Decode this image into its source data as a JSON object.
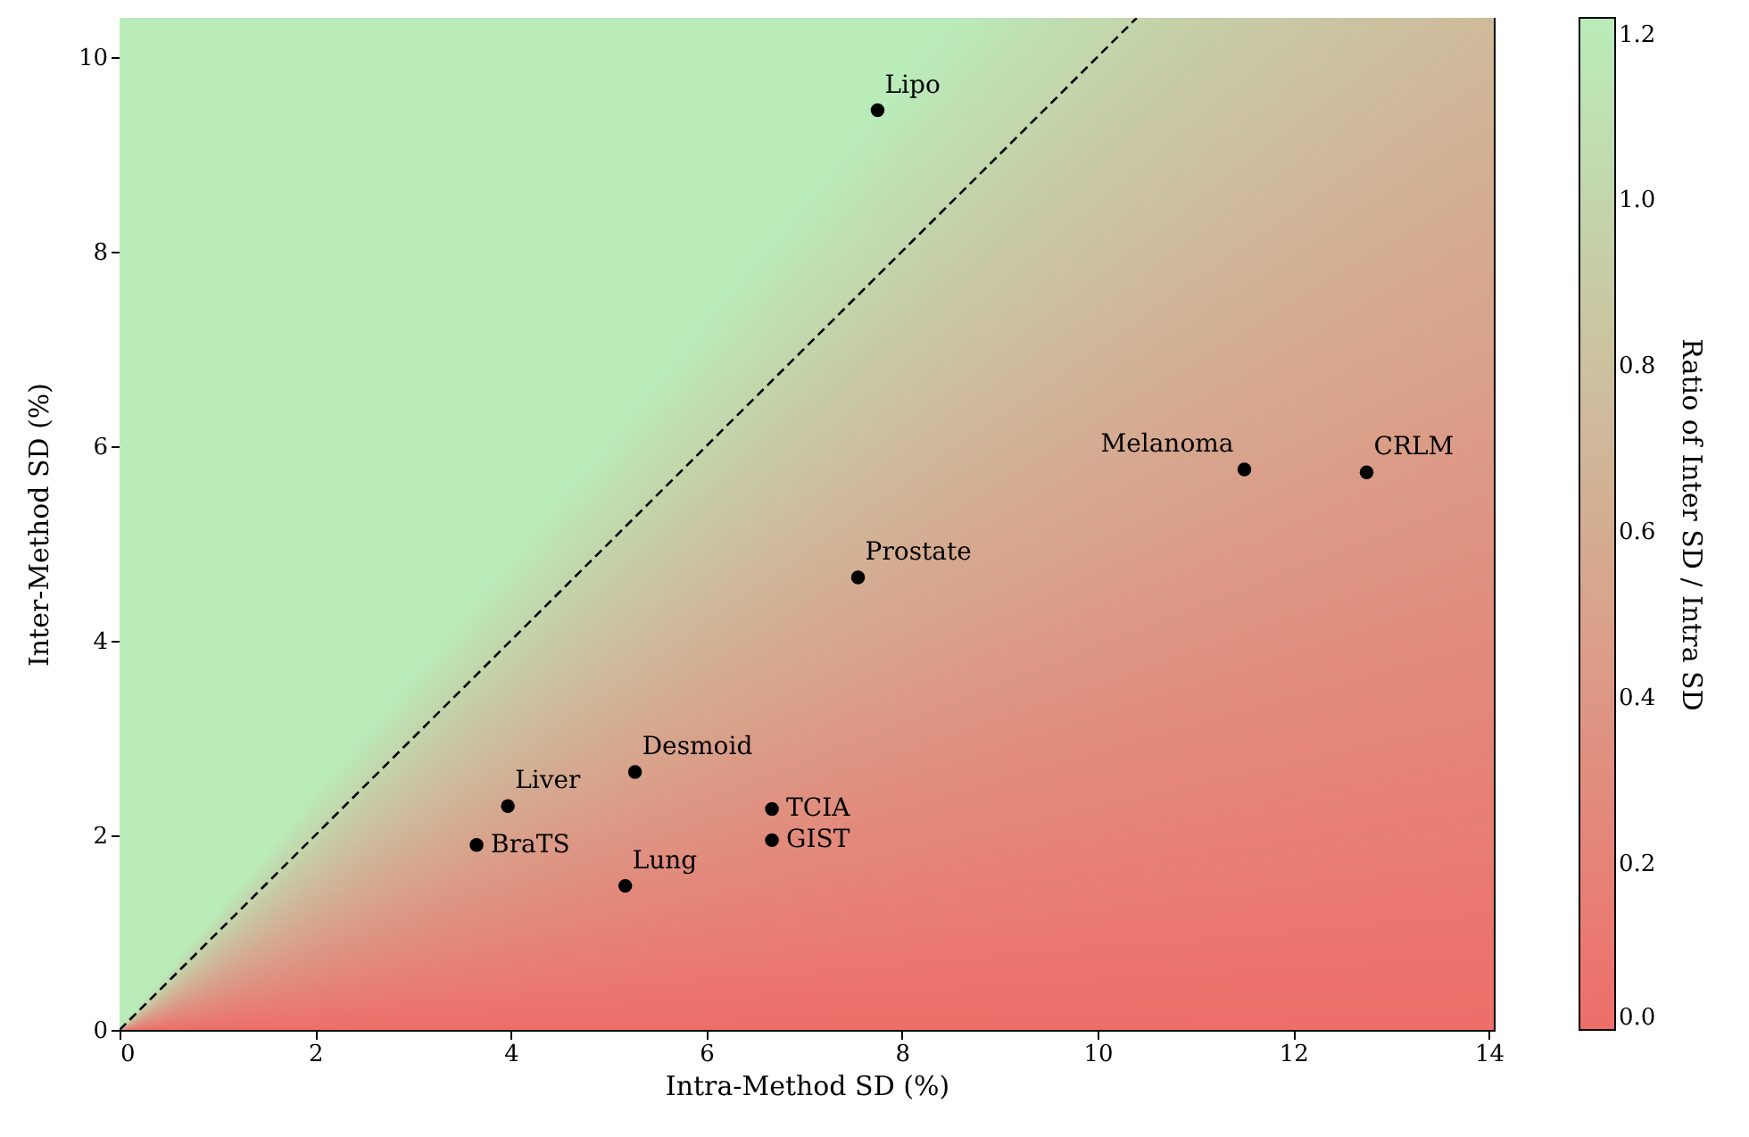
{
  "chart_data": {
    "type": "scatter",
    "xlabel": "Intra-Method SD (%)",
    "ylabel": "Inter-Method SD (%)",
    "clabel": "Ratio of Inter SD / Intra SD",
    "xlim": [
      0,
      14.05
    ],
    "ylim": [
      0,
      10.4
    ],
    "xticks": [
      0,
      2,
      4,
      6,
      8,
      10,
      12,
      14
    ],
    "yticks": [
      0,
      2,
      4,
      6,
      8,
      10
    ],
    "clim": [
      0,
      1.22
    ],
    "cticks": [
      {
        "value": 0,
        "label": "0.0"
      },
      {
        "value": 0.2,
        "label": "0.2"
      },
      {
        "value": 0.4,
        "label": "0.4"
      },
      {
        "value": 0.6,
        "label": "0.6"
      },
      {
        "value": 0.8,
        "label": "0.8"
      },
      {
        "value": 1,
        "label": "1.0"
      },
      {
        "value": 1.2,
        "label": "1.2"
      }
    ],
    "series": [
      {
        "color": "#000000",
        "marker": "circle",
        "x": [
          3.65,
          3.97,
          5.27,
          5.17,
          6.67,
          6.67,
          7.55,
          7.75,
          11.5,
          12.75
        ],
        "values": [
          1.9,
          2.3,
          2.65,
          1.48,
          2.27,
          1.95,
          4.65,
          9.45,
          5.76,
          5.73
        ],
        "value_labels": [
          "BraTS",
          "Liver",
          "Desmoid",
          "Lung",
          "TCIA",
          "GIST",
          "Prostate",
          "Lipo",
          "Melanoma",
          "CRLM"
        ]
      },
      {
        "type": "line",
        "color": "#000000",
        "line_style": "dashed",
        "x": [
          0,
          10.4
        ],
        "values": [
          0,
          10.4
        ]
      }
    ]
  }
}
